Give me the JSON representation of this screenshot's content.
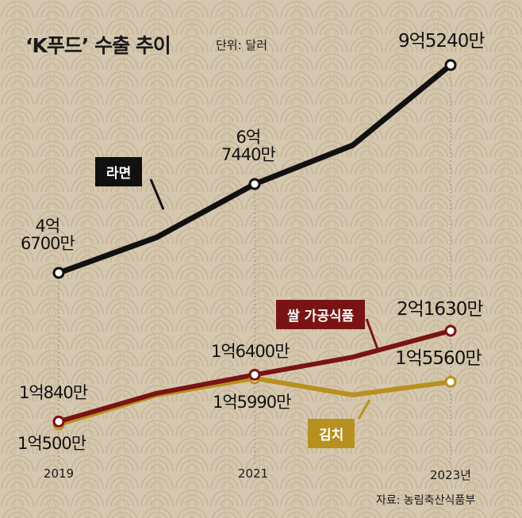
{
  "title": "‘K푸드’ 수출 추이",
  "unit_label": "단위: 달러",
  "source": "자료: 농림축산식품부",
  "colors": {
    "background": "#d6c8b0",
    "ramen": "#111111",
    "rice": "#7a1414",
    "kimchi": "#b8901f"
  },
  "chart_data": {
    "type": "line",
    "title": "‘K푸드’ 수출 추이",
    "unit": "달러",
    "x": [
      2019,
      2020,
      2021,
      2022,
      2023
    ],
    "x_tick_labels": [
      "2019",
      "2021",
      "2023년"
    ],
    "series": [
      {
        "name": "라면",
        "values": [
          467000000,
          550000000,
          674400000,
          765000000,
          952400000
        ],
        "point_labels": {
          "2019": "4억\n6700만",
          "2021": "6억\n7440만",
          "2023": "9억5240만"
        }
      },
      {
        "name": "쌀 가공식품",
        "values": [
          108400000,
          142000000,
          164000000,
          185000000,
          216300000
        ],
        "point_labels": {
          "2019": "1억840만",
          "2021": "1억6400만",
          "2023": "2억1630만"
        }
      },
      {
        "name": "김치",
        "values": [
          105000000,
          140000000,
          159900000,
          140000000,
          155600000
        ],
        "point_labels": {
          "2019": "1억500만",
          "2021": "1억5990만",
          "2023": "1억5560만"
        }
      }
    ],
    "legend": "inline tags"
  }
}
